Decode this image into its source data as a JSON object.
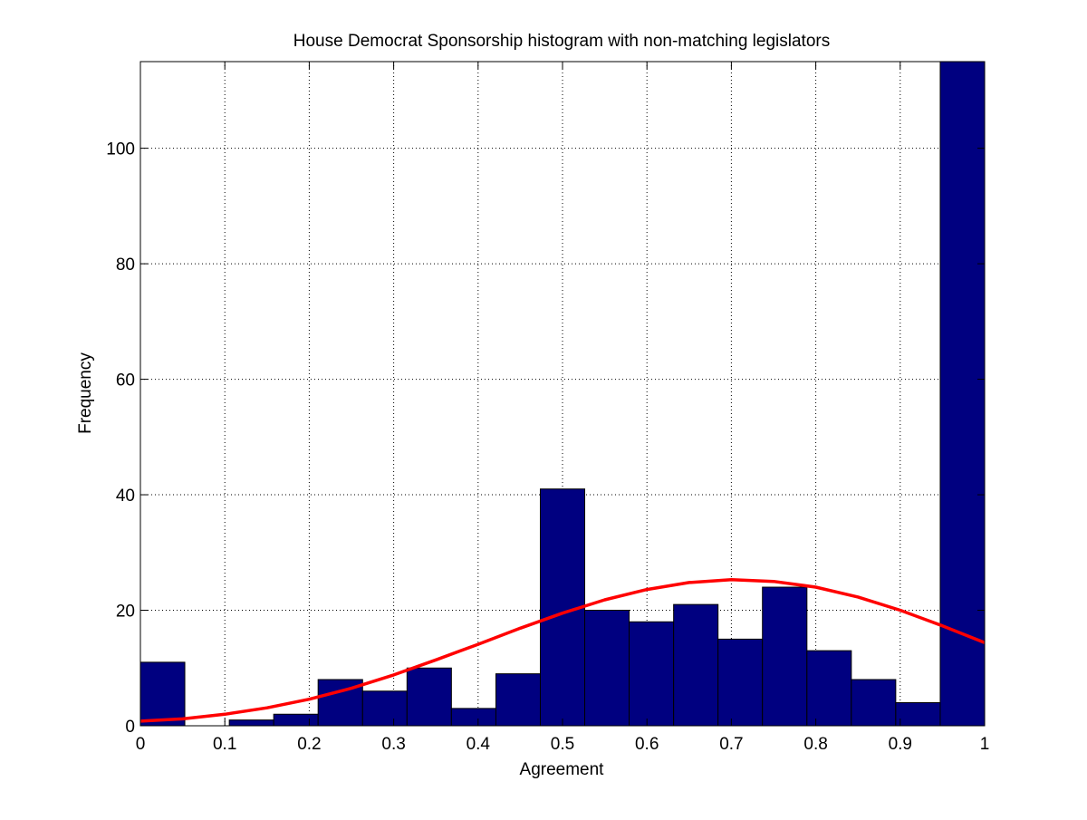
{
  "chart_data": {
    "type": "bar",
    "title": "House Democrat Sponsorship histogram with non-matching legislators",
    "xlabel": "Agreement",
    "ylabel": "Frequency",
    "xlim": [
      0,
      1
    ],
    "ylim": [
      0,
      115
    ],
    "xticks": [
      0,
      0.1,
      0.2,
      0.3,
      0.4,
      0.5,
      0.6,
      0.7,
      0.8,
      0.9,
      1
    ],
    "xtick_labels": [
      "0",
      "0.1",
      "0.2",
      "0.3",
      "0.4",
      "0.5",
      "0.6",
      "0.7",
      "0.8",
      "0.9",
      "1"
    ],
    "yticks": [
      0,
      20,
      40,
      60,
      80,
      100
    ],
    "ytick_labels": [
      "0",
      "20",
      "40",
      "60",
      "80",
      "100"
    ],
    "grid": true,
    "bin_edges": [
      0,
      0.0526,
      0.1053,
      0.1579,
      0.2105,
      0.2632,
      0.3158,
      0.3684,
      0.4211,
      0.4737,
      0.5263,
      0.5789,
      0.6316,
      0.6842,
      0.7368,
      0.7895,
      0.8421,
      0.8947,
      0.9474,
      1.0
    ],
    "counts": [
      11,
      0,
      1,
      2,
      8,
      6,
      10,
      3,
      9,
      41,
      20,
      18,
      21,
      15,
      24,
      13,
      8,
      4,
      115
    ],
    "fit_curve": {
      "type": "normal-fit",
      "x": [
        0,
        0.05,
        0.1,
        0.15,
        0.2,
        0.25,
        0.3,
        0.35,
        0.4,
        0.45,
        0.5,
        0.55,
        0.6,
        0.65,
        0.7,
        0.75,
        0.8,
        0.85,
        0.9,
        0.95,
        1.0
      ],
      "y": [
        0.8,
        1.2,
        2.0,
        3.1,
        4.6,
        6.5,
        8.8,
        11.4,
        14.1,
        16.9,
        19.5,
        21.8,
        23.6,
        24.8,
        25.3,
        25.0,
        24.0,
        22.3,
        20.0,
        17.3,
        14.4
      ]
    },
    "colors": {
      "bar_fill": "#000080",
      "bar_edge": "#000000",
      "fit_line": "#ff0000",
      "grid": "#000000",
      "background": "#ffffff"
    }
  }
}
